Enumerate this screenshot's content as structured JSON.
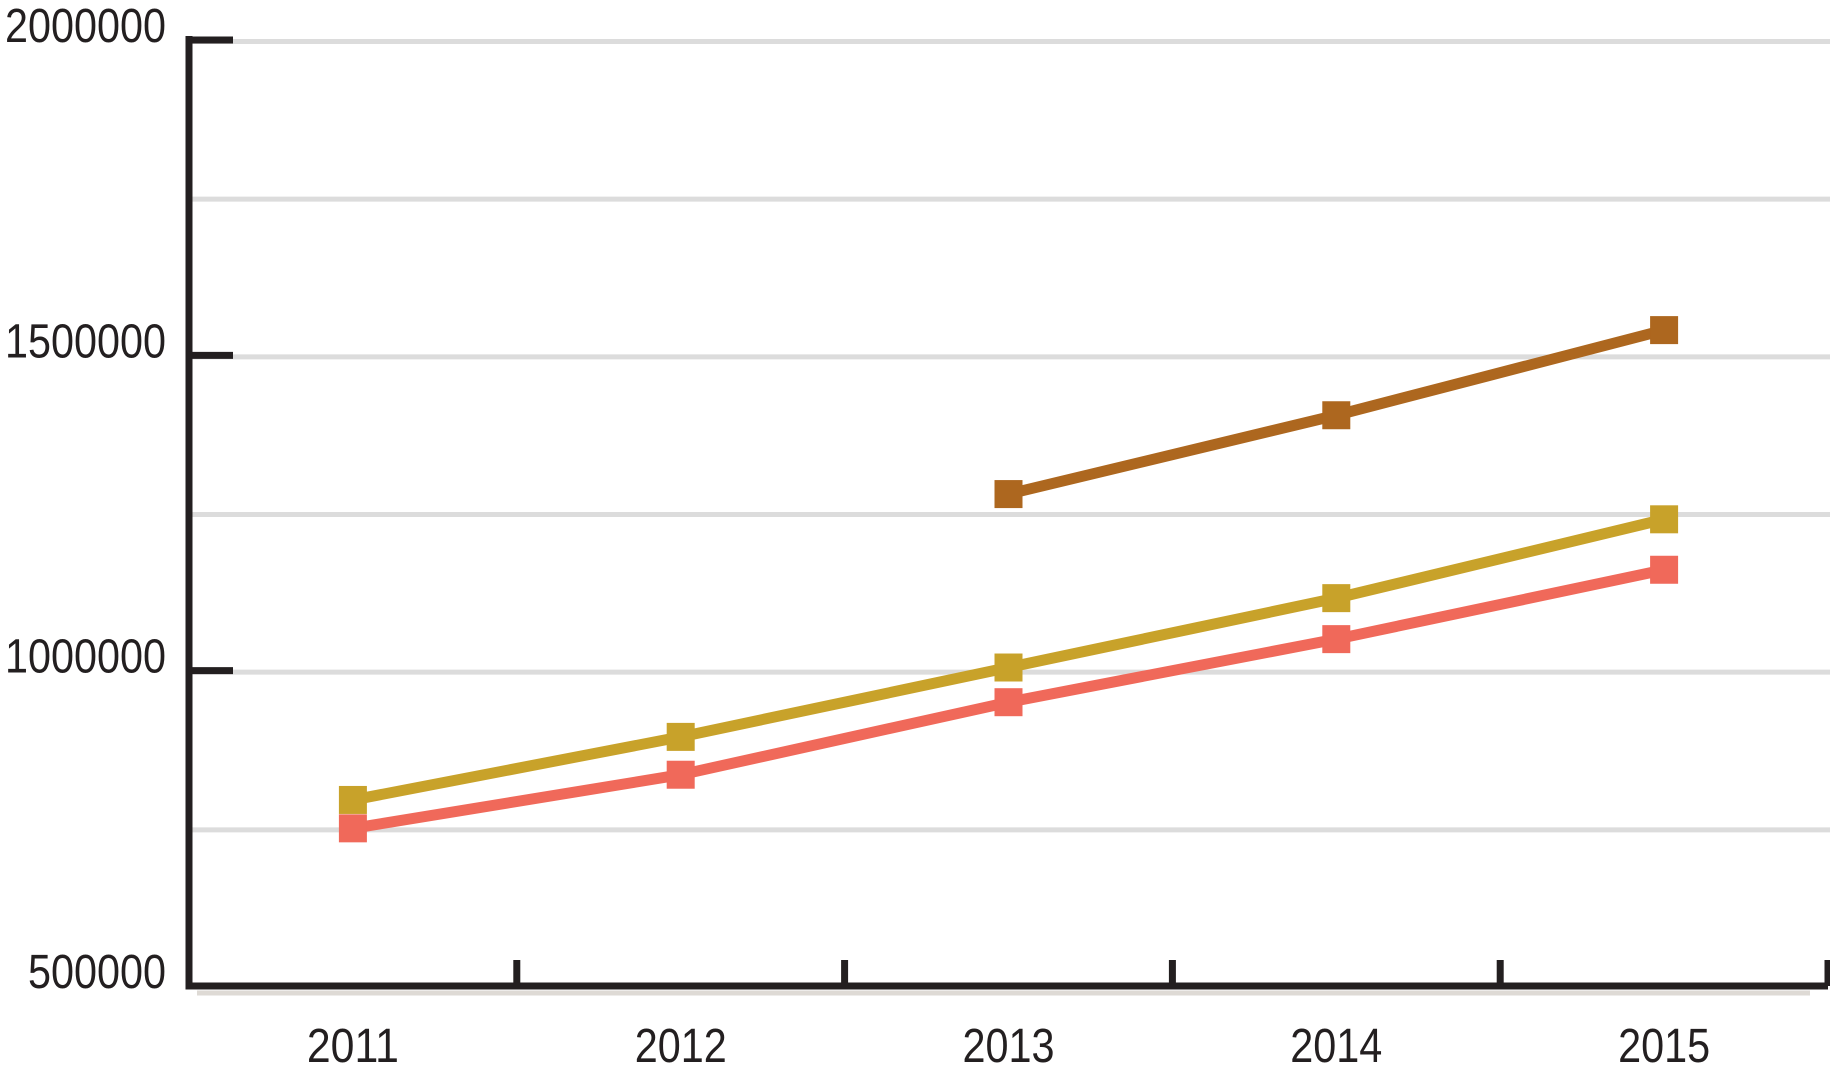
{
  "chart_data": {
    "type": "line",
    "categories": [
      "2011",
      "2012",
      "2013",
      "2014",
      "2015"
    ],
    "series": [
      {
        "name": "brown",
        "color": "#ad671f",
        "marker": "square",
        "values": [
          null,
          null,
          1280000,
          1405000,
          1540000
        ]
      },
      {
        "name": "gold",
        "color": "#c8a22a",
        "marker": "square",
        "values": [
          795000,
          895000,
          1005000,
          1115000,
          1240000
        ]
      },
      {
        "name": "red",
        "color": "#f0695a",
        "marker": "square",
        "values": [
          750000,
          835000,
          950000,
          1050000,
          1160000
        ]
      }
    ],
    "title": "",
    "xlabel": "",
    "ylabel": "",
    "ylim": [
      500000,
      2000000
    ],
    "ytick_labels": [
      "2000000",
      "1500000",
      "1000000",
      "500000"
    ],
    "ytick_interval": 500000,
    "grid_interval": 250000,
    "grid": "on",
    "legend": "none"
  },
  "style": {
    "axis_color": "#231f20",
    "text_color": "#231f20",
    "grid_color": "#dcdcdc",
    "shadow_color": "#dedad5",
    "background": "#ffffff"
  }
}
